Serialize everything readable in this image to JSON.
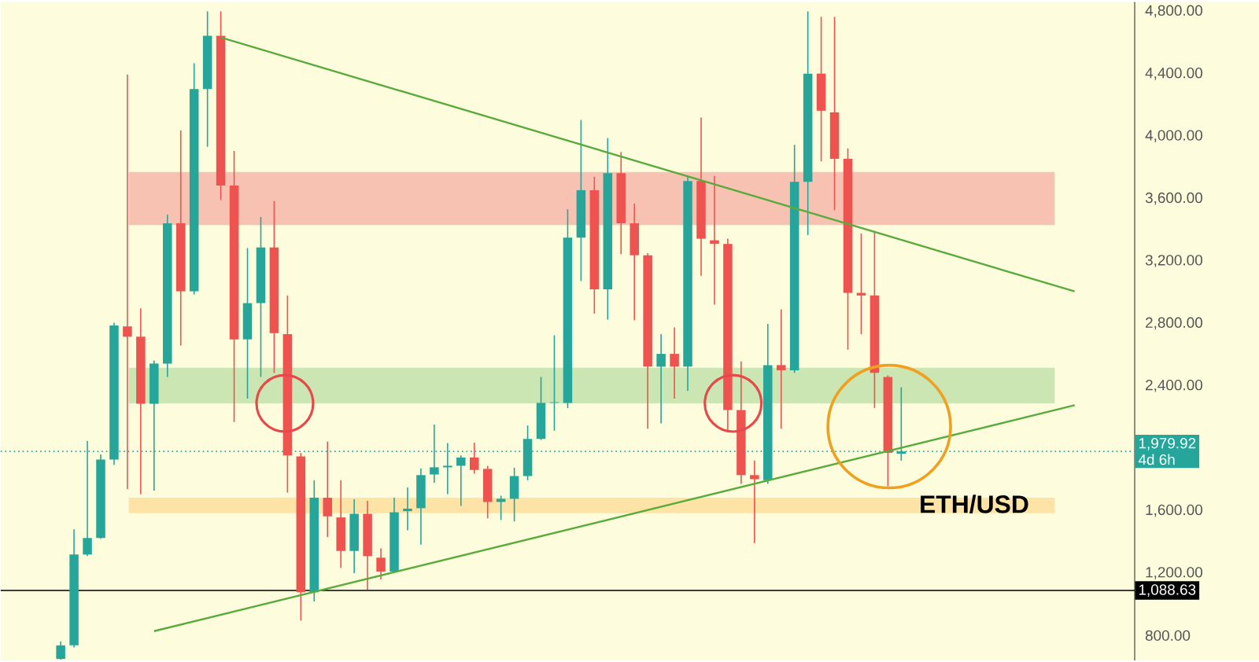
{
  "chart_data": {
    "type": "candlestick",
    "title": "ETH/USD",
    "categories": [
      null,
      null,
      null,
      null,
      null,
      null,
      null,
      null,
      null,
      null,
      null,
      null,
      null,
      null,
      null,
      null,
      null,
      null,
      null,
      null,
      null,
      null,
      null,
      null,
      null,
      null,
      null,
      null,
      null,
      null,
      null,
      null,
      null,
      null,
      null,
      null,
      null,
      null,
      null,
      null,
      null,
      null,
      null,
      null,
      null,
      null,
      null,
      null,
      null,
      null,
      null,
      null,
      null,
      null,
      null,
      null,
      null,
      null,
      null,
      null,
      null,
      null,
      null,
      null,
      null,
      null,
      null,
      null,
      null,
      null,
      null,
      null,
      null,
      null,
      null,
      null,
      null,
      null,
      null,
      null,
      null,
      null,
      null,
      null,
      null
    ],
    "ohlc": [
      null,
      null,
      null,
      null,
      [
        650,
        763,
        645,
        737
      ],
      [
        737,
        1481,
        724,
        1319
      ],
      [
        1319,
        2047,
        1309,
        1425
      ],
      [
        1425,
        1961,
        1420,
        1928
      ],
      [
        1928,
        2804,
        1894,
        2787
      ],
      [
        2781,
        4395,
        1739,
        2715
      ],
      [
        2715,
        2896,
        1706,
        2285
      ],
      [
        2285,
        2563,
        1729,
        2543
      ],
      [
        2543,
        3498,
        2457,
        3442
      ],
      [
        3442,
        4037,
        2658,
        3006
      ],
      [
        3006,
        4467,
        2986,
        4302
      ],
      [
        4302,
        4800,
        3932,
        4643
      ],
      [
        4643,
        4800,
        3591,
        3684
      ],
      [
        3684,
        3905,
        2169,
        2698
      ],
      [
        2698,
        3283,
        2318,
        2930
      ],
      [
        2930,
        3482,
        2457,
        3287
      ],
      [
        3287,
        3584,
        2483,
        2738
      ],
      [
        2731,
        2979,
        1716,
        1954
      ],
      [
        1948,
        1970,
        896,
        1078
      ],
      [
        1078,
        1795,
        1018,
        1683
      ],
      [
        1683,
        2043,
        1431,
        1564
      ],
      [
        1557,
        1795,
        1233,
        1342
      ],
      [
        1342,
        1673,
        1200,
        1580
      ],
      [
        1580,
        1663,
        1094,
        1309
      ],
      [
        1299,
        1359,
        1160,
        1210
      ],
      [
        1210,
        1683,
        1210,
        1590
      ],
      [
        1597,
        1749,
        1474,
        1613
      ],
      [
        1616,
        1871,
        1382,
        1828
      ],
      [
        1832,
        2152,
        1779,
        1878
      ],
      [
        1878,
        2033,
        1706,
        1888
      ],
      [
        1888,
        1954,
        1630,
        1941
      ],
      [
        1941,
        2037,
        1838,
        1861
      ],
      [
        1868,
        1888,
        1551,
        1656
      ],
      [
        1656,
        1696,
        1541,
        1676
      ],
      [
        1676,
        1875,
        1531,
        1822
      ],
      [
        1822,
        2146,
        1795,
        2060
      ],
      [
        2060,
        2457,
        2053,
        2291
      ],
      [
        2291,
        2724,
        2113,
        2295
      ],
      [
        2291,
        3531,
        2258,
        3350
      ],
      [
        3350,
        4104,
        3072,
        3654
      ],
      [
        3654,
        3740,
        2863,
        3019
      ],
      [
        3019,
        3988,
        2824,
        3763
      ],
      [
        3763,
        3899,
        3244,
        3442
      ],
      [
        3442,
        3568,
        2820,
        3237
      ],
      [
        3237,
        3250,
        2126,
        2523
      ],
      [
        2523,
        2731,
        2159,
        2605
      ],
      [
        2605,
        2774,
        2318,
        2523
      ],
      [
        2523,
        3746,
        2367,
        3713
      ],
      [
        3713,
        4120,
        3105,
        3343
      ],
      [
        3333,
        3746,
        2920,
        3310
      ],
      [
        3310,
        3343,
        2113,
        2245
      ],
      [
        2245,
        2556,
        1772,
        1828
      ],
      [
        1828,
        1921,
        1392,
        1802
      ],
      [
        1795,
        2797,
        1772,
        2533
      ],
      [
        2533,
        2890,
        2126,
        2500
      ],
      [
        2500,
        3945,
        2483,
        3707
      ],
      [
        3707,
        4800,
        3366,
        4401
      ],
      [
        4401,
        4765,
        3839,
        4163
      ],
      [
        4153,
        4765,
        3525,
        3855
      ],
      [
        3855,
        3922,
        2632,
        2996
      ],
      [
        2996,
        3376,
        2731,
        2979
      ],
      [
        2979,
        3393,
        2258,
        2483
      ],
      [
        2457,
        2467,
        1756,
        1971
      ],
      [
        1965,
        2391,
        1921,
        1980
      ],
      null,
      null,
      null,
      null,
      null,
      null,
      null,
      null,
      null,
      null,
      null,
      null,
      null,
      null,
      null,
      null,
      null
    ],
    "colors": [
      null,
      null,
      null,
      null,
      "#26a69a",
      "#26a69a",
      "#26a69a",
      "#26a69a",
      "#26a69a",
      "#ef5350",
      "#ef5350",
      "#26a69a",
      "#26a69a",
      "#ef5350",
      "#26a69a",
      "#26a69a",
      "#ef5350",
      "#ef5350",
      "#26a69a",
      "#26a69a",
      "#ef5350",
      "#ef5350",
      "#ef5350",
      "#26a69a",
      "#ef5350",
      "#ef5350",
      "#26a69a",
      "#ef5350",
      "#ef5350",
      "#26a69a",
      "#26a69a",
      "#26a69a",
      "#26a69a",
      "#26a69a",
      "#26a69a",
      "#ef5350",
      "#ef5350",
      "#26a69a",
      "#26a69a",
      "#26a69a",
      "#26a69a",
      "#26a69a",
      "#26a69a",
      "#26a69a",
      "#ef5350",
      "#26a69a",
      "#ef5350",
      "#ef5350",
      "#ef5350",
      "#26a69a",
      "#ef5350",
      "#26a69a",
      "#ef5350",
      "#ef5350",
      "#ef5350",
      "#ef5350",
      "#ef5350",
      "#26a69a",
      "#ef5350",
      "#26a69a",
      "#26a69a",
      "#ef5350",
      "#ef5350",
      "#ef5350",
      "#ef5350",
      "#ef5350",
      "#ef5350",
      "#26a69a",
      null,
      null,
      null,
      null,
      null,
      null,
      null,
      null,
      null,
      null,
      null,
      null,
      null,
      null,
      null,
      null,
      null
    ],
    "series": [
      {
        "type": "line",
        "color": "#5aab3e",
        "values": [
          null,
          null,
          null,
          null,
          null,
          null,
          null,
          null,
          null,
          null,
          null,
          null,
          null,
          null,
          null,
          null,
          4633,
          null,
          null,
          null,
          null,
          null,
          null,
          null,
          null,
          null,
          null,
          null,
          null,
          null,
          null,
          null,
          null,
          null,
          null,
          null,
          null,
          null,
          null,
          null,
          null,
          null,
          null,
          null,
          null,
          null,
          null,
          null,
          null,
          null,
          null,
          null,
          null,
          null,
          null,
          null,
          null,
          null,
          null,
          null,
          null,
          null,
          null,
          null,
          null,
          null,
          null,
          null,
          null,
          null,
          null,
          null,
          null,
          null,
          null,
          null,
          null,
          null,
          null,
          null,
          3005,
          null,
          null,
          null,
          null
        ]
      },
      {
        "type": "line",
        "color": "#5aab3e",
        "values": [
          null,
          null,
          null,
          null,
          null,
          null,
          null,
          null,
          null,
          null,
          null,
          828,
          null,
          null,
          null,
          null,
          null,
          null,
          null,
          null,
          null,
          null,
          null,
          null,
          null,
          null,
          null,
          null,
          null,
          null,
          null,
          null,
          null,
          null,
          null,
          null,
          null,
          null,
          null,
          null,
          null,
          null,
          null,
          null,
          null,
          null,
          null,
          null,
          null,
          null,
          null,
          null,
          null,
          null,
          null,
          null,
          null,
          null,
          null,
          null,
          null,
          null,
          null,
          null,
          null,
          null,
          null,
          null,
          null,
          null,
          null,
          null,
          null,
          null,
          null,
          null,
          null,
          null,
          null,
          null,
          2276,
          null,
          null,
          null,
          null
        ]
      }
    ],
    "ylim": [
      640,
      4860
    ],
    "yticks": [
      {
        "value": 800,
        "label": "800.00"
      },
      {
        "value": 1200,
        "label": "1,200.00"
      },
      {
        "value": 1600,
        "label": "1,600.00"
      },
      {
        "value": 2400,
        "label": "2,400.00"
      },
      {
        "value": 2800,
        "label": "2,800.00"
      },
      {
        "value": 3200,
        "label": "3,200.00"
      },
      {
        "value": 3600,
        "label": "3,600.00"
      },
      {
        "value": 4000,
        "label": "4,000.00"
      },
      {
        "value": 4400,
        "label": "4,400.00"
      },
      {
        "value": 4800,
        "label": "4,800.00"
      }
    ],
    "tick_labels": "y",
    "grid": false,
    "ref_lines": [
      {
        "axis": "y",
        "value": 1979.92,
        "label": "1,979.92",
        "color": "#26a69a",
        "line_style": "dotted"
      },
      {
        "axis": "y",
        "value": 1088.63,
        "label": "1,088.63",
        "color": "#000000",
        "line_style": "solid"
      }
    ],
    "bands": [
      {
        "axis": "y",
        "from": 3430,
        "to": 3770,
        "color": "#f7c2b2"
      },
      {
        "axis": "y",
        "from": 2288,
        "to": 2516,
        "color": "#cbe6b2"
      },
      {
        "axis": "y",
        "from": 1584,
        "to": 1683,
        "color": "#fde3a6"
      }
    ],
    "annotations": [
      "4d 6h"
    ]
  }
}
